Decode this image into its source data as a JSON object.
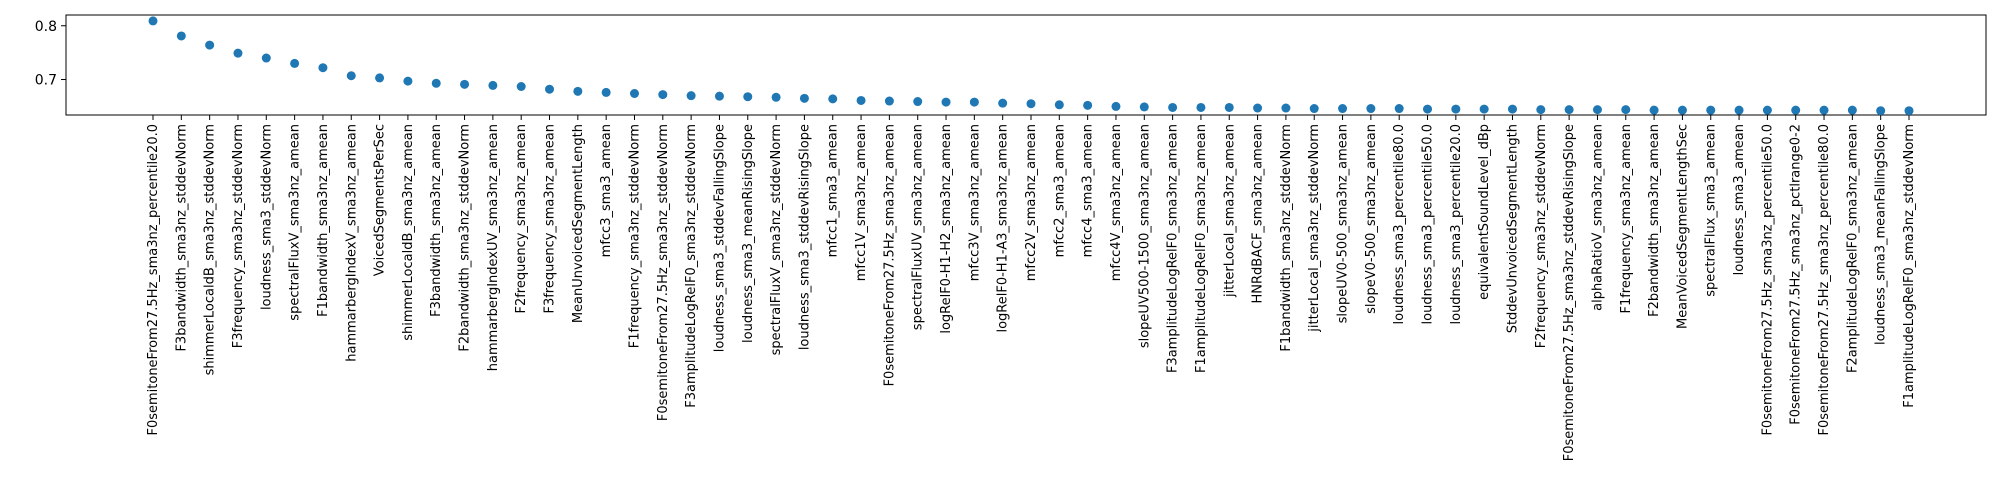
{
  "chart_data": {
    "type": "scatter",
    "title": "",
    "xlabel": "",
    "ylabel": "",
    "grid": false,
    "legend": false,
    "color": "#1f77b4",
    "ylim": [
      0.634,
      0.82
    ],
    "yticks": [
      "0.6",
      "0.7",
      "0.8"
    ],
    "ytick_values": [
      0.6,
      0.7,
      0.8
    ],
    "categories": [
      "F0semitoneFrom27.5Hz_sma3nz_percentile20.0",
      "F3bandwidth_sma3nz_stddevNorm",
      "shimmerLocaldB_sma3nz_stddevNorm",
      "F3frequency_sma3nz_stddevNorm",
      "loudness_sma3_stddevNorm",
      "spectralFluxV_sma3nz_amean",
      "F1bandwidth_sma3nz_amean",
      "hammarbergIndexV_sma3nz_amean",
      "VoicedSegmentsPerSec",
      "shimmerLocaldB_sma3nz_amean",
      "F3bandwidth_sma3nz_amean",
      "F2bandwidth_sma3nz_stddevNorm",
      "hammarbergIndexUV_sma3nz_amean",
      "F2frequency_sma3nz_amean",
      "F3frequency_sma3nz_amean",
      "MeanUnvoicedSegmentLength",
      "mfcc3_sma3_amean",
      "F1frequency_sma3nz_stddevNorm",
      "F0semitoneFrom27.5Hz_sma3nz_stddevNorm",
      "F3amplitudeLogRelF0_sma3nz_stddevNorm",
      "loudness_sma3_stddevFallingSlope",
      "loudness_sma3_meanRisingSlope",
      "spectralFluxV_sma3nz_stddevNorm",
      "loudness_sma3_stddevRisingSlope",
      "mfcc1_sma3_amean",
      "mfcc1V_sma3nz_amean",
      "F0semitoneFrom27.5Hz_sma3nz_amean",
      "spectralFluxUV_sma3nz_amean",
      "logRelF0-H1-H2_sma3nz_amean",
      "mfcc3V_sma3nz_amean",
      "logRelF0-H1-A3_sma3nz_amean",
      "mfcc2V_sma3nz_amean",
      "mfcc2_sma3_amean",
      "mfcc4_sma3_amean",
      "mfcc4V_sma3nz_amean",
      "slopeUV500-1500_sma3nz_amean",
      "F3amplitudeLogRelF0_sma3nz_amean",
      "F1amplitudeLogRelF0_sma3nz_amean",
      "jitterLocal_sma3nz_amean",
      "HNRdBACF_sma3nz_amean",
      "F1bandwidth_sma3nz_stddevNorm",
      "jitterLocal_sma3nz_stddevNorm",
      "slopeUV0-500_sma3nz_amean",
      "slopeV0-500_sma3nz_amean",
      "loudness_sma3_percentile80.0",
      "loudness_sma3_percentile50.0",
      "loudness_sma3_percentile20.0",
      "equivalentSoundLevel_dBp",
      "StddevUnvoicedSegmentLength",
      "F2frequency_sma3nz_stddevNorm",
      "F0semitoneFrom27.5Hz_sma3nz_stddevRisingSlope",
      "alphaRatioV_sma3nz_amean",
      "F1frequency_sma3nz_amean",
      "F2bandwidth_sma3nz_amean",
      "MeanVoicedSegmentLengthSec",
      "spectralFlux_sma3_amean",
      "loudness_sma3_amean",
      "F0semitoneFrom27.5Hz_sma3nz_percentile50.0",
      "F0semitoneFrom27.5Hz_sma3nz_pctlrange0-2",
      "F0semitoneFrom27.5Hz_sma3nz_percentile80.0",
      "F2amplitudeLogRelF0_sma3nz_amean",
      "loudness_sma3_meanFallingSlope",
      "F1amplitudeLogRelF0_sma3nz_stddevNorm"
    ],
    "values": [
      0.809,
      0.781,
      0.764,
      0.749,
      0.74,
      0.73,
      0.722,
      0.707,
      0.703,
      0.697,
      0.693,
      0.691,
      0.689,
      0.687,
      0.682,
      0.678,
      0.676,
      0.674,
      0.672,
      0.67,
      0.669,
      0.668,
      0.667,
      0.665,
      0.664,
      0.661,
      0.66,
      0.659,
      0.658,
      0.658,
      0.656,
      0.655,
      0.653,
      0.652,
      0.65,
      0.649,
      0.648,
      0.648,
      0.648,
      0.647,
      0.647,
      0.646,
      0.646,
      0.646,
      0.646,
      0.645,
      0.645,
      0.645,
      0.645,
      0.644,
      0.644,
      0.644,
      0.644,
      0.643,
      0.643,
      0.643,
      0.643,
      0.643,
      0.643,
      0.643,
      0.643,
      0.642,
      0.642
    ]
  }
}
